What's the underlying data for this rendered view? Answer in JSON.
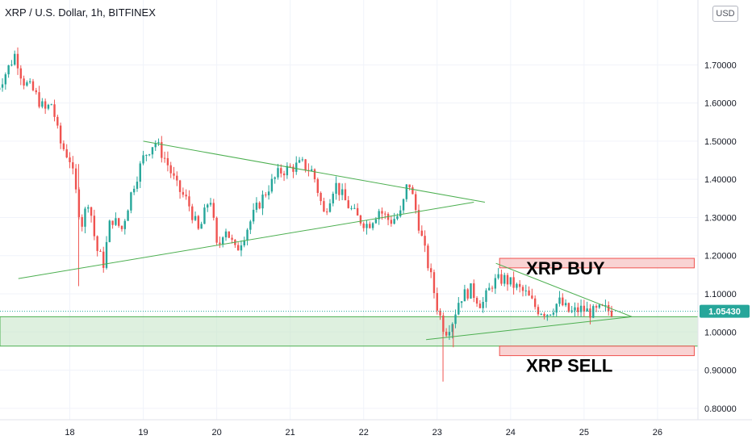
{
  "header": {
    "title": "XRP / U.S. Dollar, 1h, BITFINEX",
    "currency_button": "USD"
  },
  "colors": {
    "up": "#26a69a",
    "down": "#ef5350",
    "trendline": "#4caf50",
    "support_zone": "#c8e6c9",
    "buy_sell_zone": "#f8c8c8",
    "price_tag": "#26a69a",
    "grid": "#f0f3fa",
    "axis_text": "#131722"
  },
  "chart_data": {
    "type": "candlestick",
    "title": "XRP / U.S. Dollar, 1h, BITFINEX",
    "x_axis": {
      "tick_labels": [
        "18",
        "19",
        "20",
        "21",
        "22",
        "23",
        "24",
        "25",
        "26"
      ],
      "range_days": [
        17.05,
        26.55
      ]
    },
    "y_axis": {
      "tick_labels": [
        "0.80000",
        "0.90000",
        "1.00000",
        "1.10000",
        "1.20000",
        "1.30000",
        "1.40000",
        "1.50000",
        "1.60000",
        "1.70000"
      ],
      "range": [
        0.77,
        1.87
      ],
      "currency": "USD"
    },
    "last_price": "1.05430",
    "last_price_value": 1.0543,
    "price_path": [
      [
        17.0,
        1.62
      ],
      [
        17.2,
        1.69
      ],
      [
        17.3,
        1.73
      ],
      [
        17.4,
        1.66
      ],
      [
        17.55,
        1.63
      ],
      [
        17.7,
        1.58
      ],
      [
        17.8,
        1.6
      ],
      [
        17.9,
        1.5
      ],
      [
        18.05,
        1.45
      ],
      [
        18.2,
        1.28
      ],
      [
        18.3,
        1.35
      ],
      [
        18.4,
        1.22
      ],
      [
        18.5,
        1.18
      ],
      [
        18.6,
        1.3
      ],
      [
        18.75,
        1.27
      ],
      [
        18.9,
        1.38
      ],
      [
        19.05,
        1.46
      ],
      [
        19.2,
        1.5
      ],
      [
        19.35,
        1.45
      ],
      [
        19.5,
        1.38
      ],
      [
        19.65,
        1.34
      ],
      [
        19.8,
        1.26
      ],
      [
        19.95,
        1.36
      ],
      [
        20.05,
        1.21
      ],
      [
        20.15,
        1.28
      ],
      [
        20.3,
        1.21
      ],
      [
        20.45,
        1.27
      ],
      [
        20.6,
        1.33
      ],
      [
        20.75,
        1.38
      ],
      [
        20.9,
        1.42
      ],
      [
        21.05,
        1.43
      ],
      [
        21.2,
        1.44
      ],
      [
        21.35,
        1.42
      ],
      [
        21.5,
        1.31
      ],
      [
        21.65,
        1.39
      ],
      [
        21.8,
        1.34
      ],
      [
        21.95,
        1.3
      ],
      [
        22.1,
        1.28
      ],
      [
        22.25,
        1.32
      ],
      [
        22.4,
        1.29
      ],
      [
        22.55,
        1.31
      ],
      [
        22.65,
        1.4
      ],
      [
        22.75,
        1.32
      ],
      [
        22.85,
        1.23
      ],
      [
        22.95,
        1.15
      ],
      [
        23.05,
        1.06
      ],
      [
        23.15,
        1.0
      ],
      [
        23.25,
        1.03
      ],
      [
        23.35,
        1.09
      ],
      [
        23.5,
        1.11
      ],
      [
        23.65,
        1.07
      ],
      [
        23.8,
        1.13
      ],
      [
        23.95,
        1.14
      ],
      [
        24.1,
        1.12
      ],
      [
        24.25,
        1.1
      ],
      [
        24.4,
        1.06
      ],
      [
        24.55,
        1.05
      ],
      [
        24.7,
        1.08
      ],
      [
        24.85,
        1.05
      ],
      [
        25.0,
        1.06
      ],
      [
        25.15,
        1.05
      ],
      [
        25.3,
        1.06
      ],
      [
        25.4,
        1.055
      ]
    ],
    "spikes": [
      {
        "day": 18.12,
        "high": 1.44,
        "low": 1.12
      },
      {
        "day": 23.08,
        "high": 1.04,
        "low": 0.87
      },
      {
        "day": 23.22,
        "high": 1.02,
        "low": 0.96
      }
    ],
    "trendlines": [
      {
        "from": [
          19.0,
          1.5
        ],
        "to": [
          23.65,
          1.34
        ]
      },
      {
        "from": [
          17.3,
          1.14
        ],
        "to": [
          23.5,
          1.34
        ]
      },
      {
        "from": [
          23.8,
          1.18
        ],
        "to": [
          25.65,
          1.04
        ]
      },
      {
        "from": [
          22.85,
          0.98
        ],
        "to": [
          25.65,
          1.04
        ]
      }
    ],
    "zones": [
      {
        "name": "support",
        "from_day": 17.05,
        "to_day": 26.55,
        "top": 1.04,
        "bottom": 0.963
      },
      {
        "name": "buy",
        "from_day": 23.85,
        "to_day": 26.5,
        "top": 1.193,
        "bottom": 1.168,
        "label": "XRP BUY"
      },
      {
        "name": "sell",
        "from_day": 23.85,
        "to_day": 26.5,
        "top": 0.963,
        "bottom": 0.938,
        "label": "XRP SELL"
      }
    ]
  }
}
